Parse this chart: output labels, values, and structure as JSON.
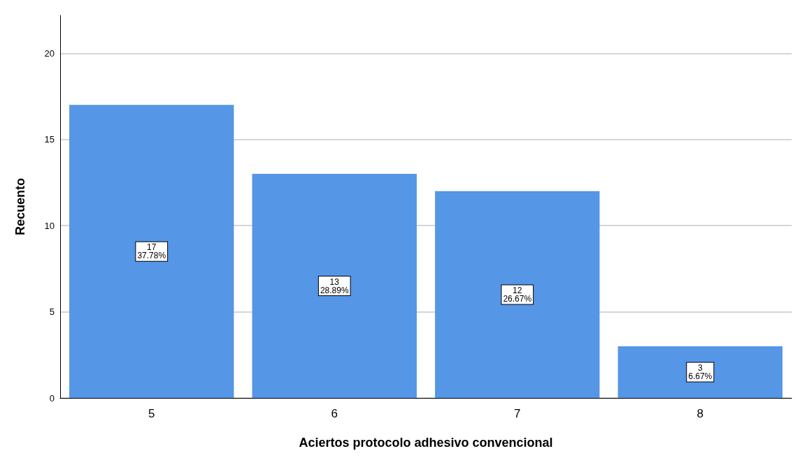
{
  "chart_data": {
    "type": "bar",
    "xlabel": "Aciertos protocolo adhesivo convencional",
    "ylabel": "Recuento",
    "categories": [
      "5",
      "6",
      "7",
      "8"
    ],
    "values": [
      17,
      13,
      12,
      3
    ],
    "value_labels": [
      "17\n37.78%",
      "13\n28.89%",
      "12\n26.67%",
      "3\n6.67%"
    ],
    "color": "#5596e6",
    "ylim": [
      0,
      22.2
    ],
    "yticks": [
      0,
      5,
      10,
      15,
      20
    ],
    "grid": "y"
  }
}
